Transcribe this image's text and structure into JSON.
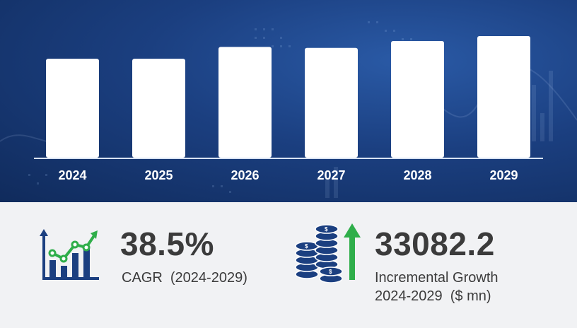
{
  "chart_data": {
    "type": "bar",
    "categories": [
      "2024",
      "2025",
      "2026",
      "2027",
      "2028",
      "2029"
    ],
    "values": [
      100,
      100,
      112,
      111,
      118,
      123
    ],
    "ylim": [
      0,
      123
    ],
    "title": "",
    "xlabel": "",
    "ylabel": "",
    "bar_color": "#ffffff",
    "background_color": "#1b3f80"
  },
  "cagr": {
    "value": "38.5%",
    "label": "CAGR  (2024-2029)",
    "icon": "growth-chart-icon"
  },
  "incremental": {
    "value": "33082.2",
    "label_line1": "Incremental Growth",
    "label_line2": "2024-2029  ($ mn)",
    "icon": "coins-with-up-arrow-icon"
  },
  "colors": {
    "navy": "#1b3f80",
    "accent_green": "#2fae4a",
    "text_dark": "#3b3b3b"
  }
}
